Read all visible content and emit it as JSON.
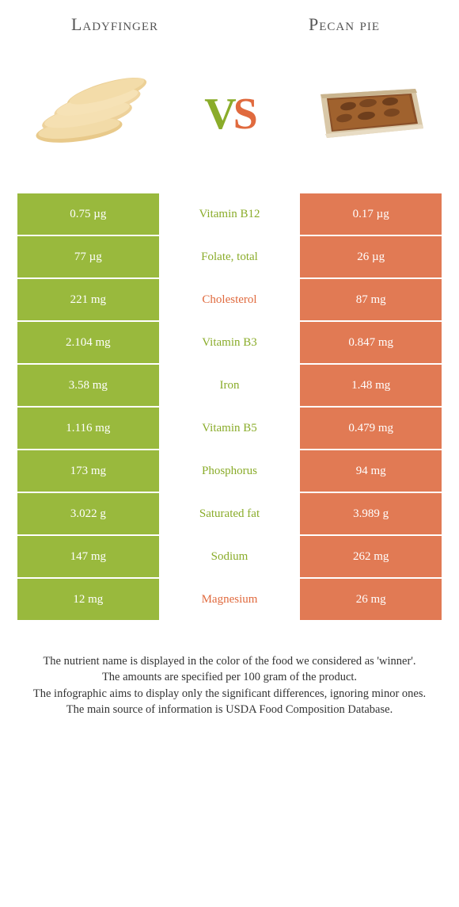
{
  "colors": {
    "green": "#99b93d",
    "green_dark": "#8aac2a",
    "orange": "#e17a54",
    "orange_dark": "#e06a3e",
    "mid_green_text": "#8aac2a",
    "mid_orange_text": "#e06a3e"
  },
  "header": {
    "left": "Ladyfinger",
    "right": "Pecan pie"
  },
  "vs": {
    "v": "V",
    "s": "S"
  },
  "table": {
    "rows": [
      {
        "left": "0.75 µg",
        "mid": "Vitamin B12",
        "right": "0.17 µg",
        "winner": "left"
      },
      {
        "left": "77 µg",
        "mid": "Folate, total",
        "right": "26 µg",
        "winner": "left"
      },
      {
        "left": "221 mg",
        "mid": "Cholesterol",
        "right": "87 mg",
        "winner": "right"
      },
      {
        "left": "2.104 mg",
        "mid": "Vitamin B3",
        "right": "0.847 mg",
        "winner": "left"
      },
      {
        "left": "3.58 mg",
        "mid": "Iron",
        "right": "1.48 mg",
        "winner": "left"
      },
      {
        "left": "1.116 mg",
        "mid": "Vitamin B5",
        "right": "0.479 mg",
        "winner": "left"
      },
      {
        "left": "173 mg",
        "mid": "Phosphorus",
        "right": "94 mg",
        "winner": "left"
      },
      {
        "left": "3.022 g",
        "mid": "Saturated fat",
        "right": "3.989 g",
        "winner": "left"
      },
      {
        "left": "147 mg",
        "mid": "Sodium",
        "right": "262 mg",
        "winner": "left"
      },
      {
        "left": "12 mg",
        "mid": "Magnesium",
        "right": "26 mg",
        "winner": "right"
      }
    ]
  },
  "footer": {
    "line1": "The nutrient name is displayed in the color of the food we considered as 'winner'.",
    "line2": "The amounts are specified per 100 gram of the product.",
    "line3": "The infographic aims to display only the significant differences, ignoring minor ones.",
    "line4": "The main source of information is USDA Food Composition Database."
  }
}
